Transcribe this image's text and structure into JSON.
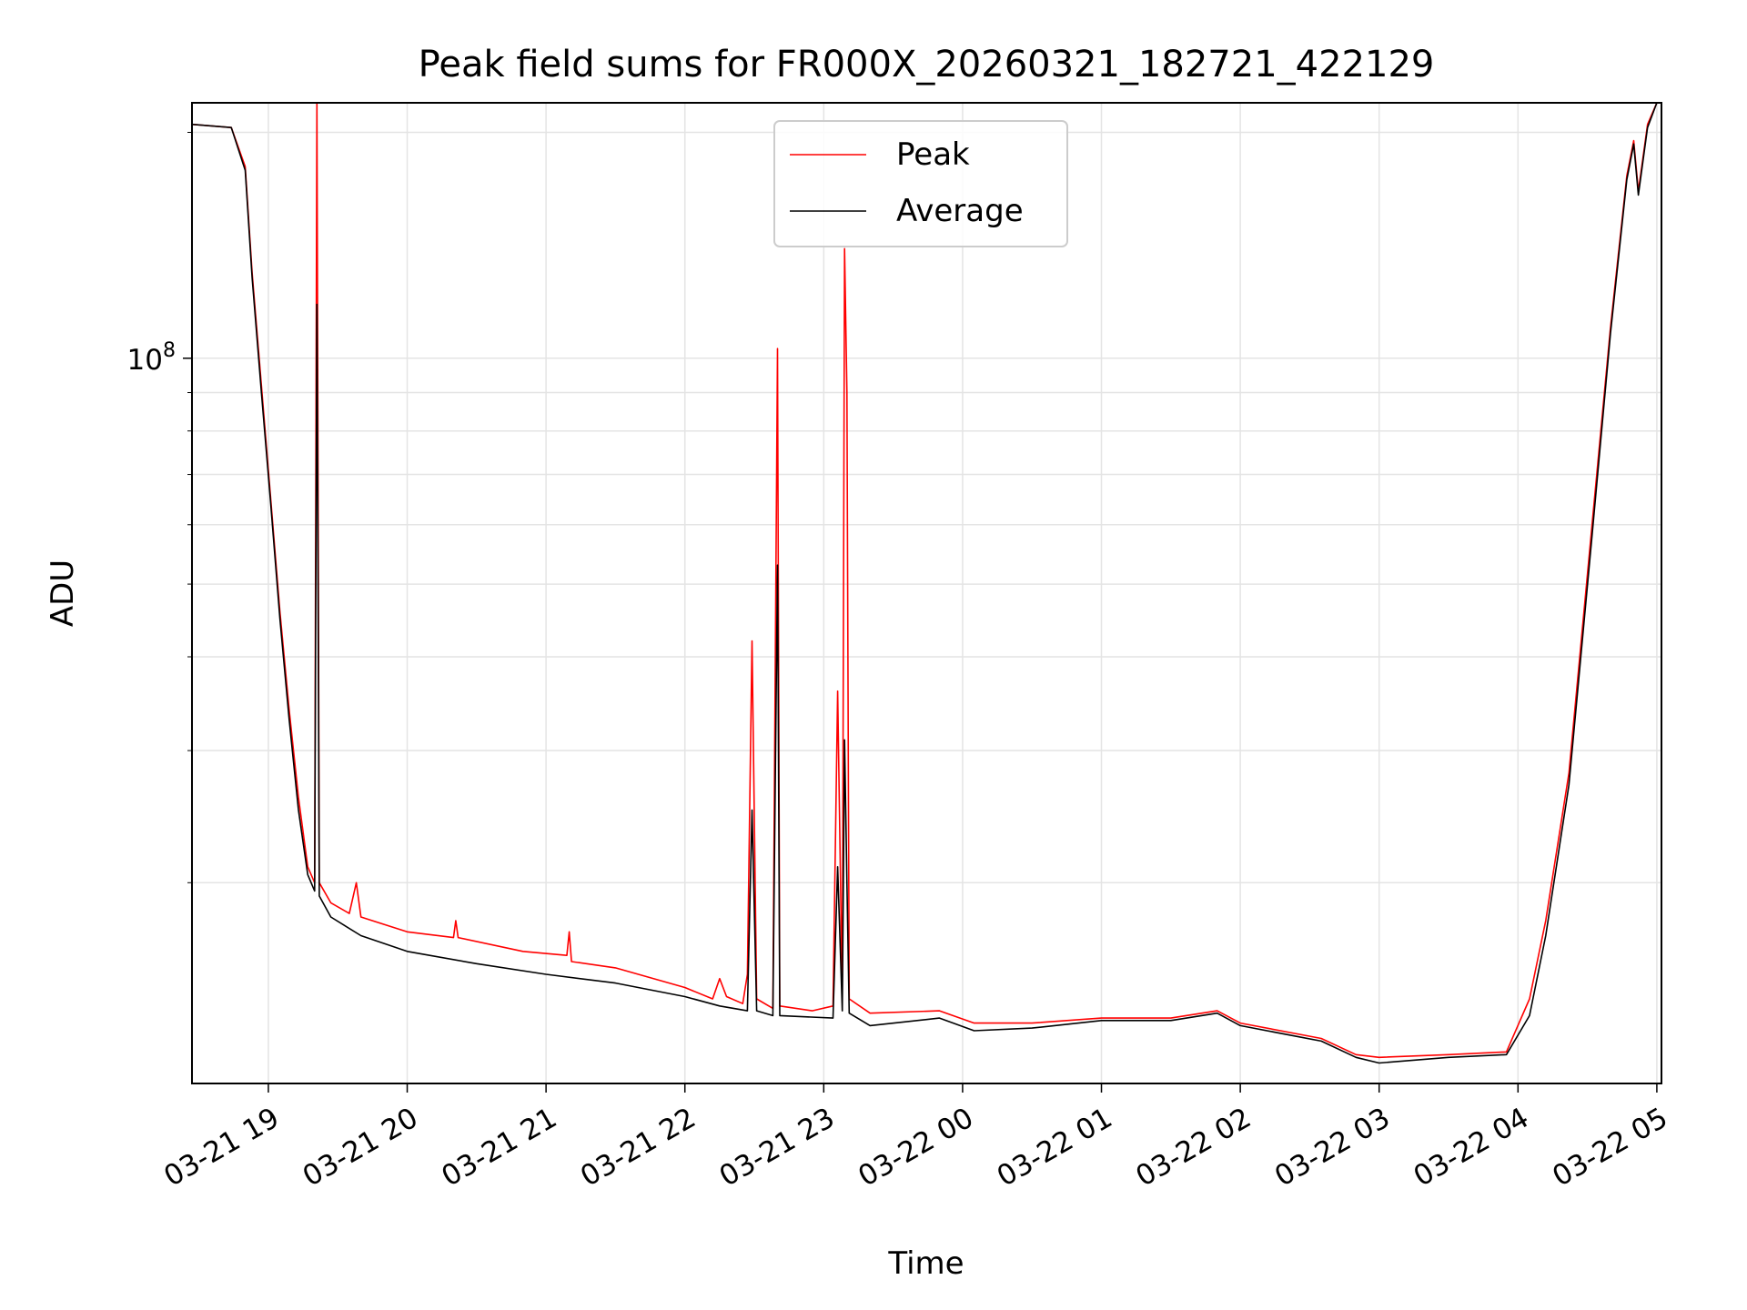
{
  "chart_data": {
    "type": "line",
    "title": "Peak field sums for FR000X_20260321_182721_422129",
    "xlabel": "Time",
    "ylabel": "ADU",
    "y_scale": "log",
    "ylim": [
      10800000,
      219000000
    ],
    "xlim": [
      "2026-03-21 18:27",
      "2026-03-22 05:02"
    ],
    "grid": true,
    "legend_position": "upper center",
    "x_ticks": [
      {
        "value": "2026-03-21 19:00",
        "label": "03-21 19"
      },
      {
        "value": "2026-03-21 20:00",
        "label": "03-21 20"
      },
      {
        "value": "2026-03-21 21:00",
        "label": "03-21 21"
      },
      {
        "value": "2026-03-21 22:00",
        "label": "03-21 22"
      },
      {
        "value": "2026-03-21 23:00",
        "label": "03-21 23"
      },
      {
        "value": "2026-03-22 00:00",
        "label": "03-22 00"
      },
      {
        "value": "2026-03-22 01:00",
        "label": "03-22 01"
      },
      {
        "value": "2026-03-22 02:00",
        "label": "03-22 02"
      },
      {
        "value": "2026-03-22 03:00",
        "label": "03-22 03"
      },
      {
        "value": "2026-03-22 04:00",
        "label": "03-22 04"
      },
      {
        "value": "2026-03-22 05:00",
        "label": "03-22 05"
      }
    ],
    "y_ticks": [
      {
        "value": 100000000,
        "label_base": "10",
        "label_exp": "8"
      }
    ],
    "series": [
      {
        "name": "Peak",
        "color": "#ff0000",
        "points": [
          [
            "2026-03-21 18:27",
            205000000
          ],
          [
            "2026-03-21 18:44",
            203000000
          ],
          [
            "2026-03-21 18:50",
            180000000
          ],
          [
            "2026-03-21 18:53",
            130000000
          ],
          [
            "2026-03-21 18:57",
            92000000
          ],
          [
            "2026-03-21 19:01",
            65000000
          ],
          [
            "2026-03-21 19:05",
            46000000
          ],
          [
            "2026-03-21 19:09",
            34000000
          ],
          [
            "2026-03-21 19:13",
            26000000
          ],
          [
            "2026-03-21 19:17",
            21000000
          ],
          [
            "2026-03-21 19:20",
            20000000
          ],
          [
            "2026-03-21 19:21",
            219000000
          ],
          [
            "2026-03-21 19:22",
            20000000
          ],
          [
            "2026-03-21 19:27",
            18800000
          ],
          [
            "2026-03-21 19:35",
            18200000
          ],
          [
            "2026-03-21 19:38",
            20000000
          ],
          [
            "2026-03-21 19:40",
            18000000
          ],
          [
            "2026-03-21 20:00",
            17200000
          ],
          [
            "2026-03-21 20:20",
            16900000
          ],
          [
            "2026-03-21 20:21",
            17800000
          ],
          [
            "2026-03-21 20:22",
            16900000
          ],
          [
            "2026-03-21 20:50",
            16200000
          ],
          [
            "2026-03-21 21:09",
            16000000
          ],
          [
            "2026-03-21 21:10",
            17200000
          ],
          [
            "2026-03-21 21:11",
            15700000
          ],
          [
            "2026-03-21 21:30",
            15400000
          ],
          [
            "2026-03-21 22:00",
            14500000
          ],
          [
            "2026-03-21 22:12",
            14000000
          ],
          [
            "2026-03-21 22:15",
            14900000
          ],
          [
            "2026-03-21 22:18",
            14100000
          ],
          [
            "2026-03-21 22:25",
            13800000
          ],
          [
            "2026-03-21 22:27",
            15100000
          ],
          [
            "2026-03-21 22:29",
            42000000
          ],
          [
            "2026-03-21 22:31",
            14000000
          ],
          [
            "2026-03-21 22:38",
            13600000
          ],
          [
            "2026-03-21 22:40",
            103000000
          ],
          [
            "2026-03-21 22:41",
            13700000
          ],
          [
            "2026-03-21 22:55",
            13500000
          ],
          [
            "2026-03-21 23:04",
            13700000
          ],
          [
            "2026-03-21 23:06",
            36000000
          ],
          [
            "2026-03-21 23:08",
            14000000
          ],
          [
            "2026-03-21 23:09",
            140000000
          ],
          [
            "2026-03-21 23:10",
            90000000
          ],
          [
            "2026-03-21 23:11",
            14000000
          ],
          [
            "2026-03-21 23:20",
            13400000
          ],
          [
            "2026-03-21 23:50",
            13500000
          ],
          [
            "2026-03-22 00:05",
            13000000
          ],
          [
            "2026-03-22 00:30",
            13000000
          ],
          [
            "2026-03-22 01:00",
            13200000
          ],
          [
            "2026-03-22 01:30",
            13200000
          ],
          [
            "2026-03-22 01:50",
            13500000
          ],
          [
            "2026-03-22 02:00",
            13000000
          ],
          [
            "2026-03-22 02:35",
            12400000
          ],
          [
            "2026-03-22 02:50",
            11800000
          ],
          [
            "2026-03-22 03:00",
            11700000
          ],
          [
            "2026-03-22 03:30",
            11800000
          ],
          [
            "2026-03-22 03:55",
            11900000
          ],
          [
            "2026-03-22 04:05",
            14000000
          ],
          [
            "2026-03-22 04:12",
            17800000
          ],
          [
            "2026-03-22 04:22",
            28000000
          ],
          [
            "2026-03-22 04:32",
            60000000
          ],
          [
            "2026-03-22 04:40",
            110000000
          ],
          [
            "2026-03-22 04:47",
            175000000
          ],
          [
            "2026-03-22 04:50",
            195000000
          ],
          [
            "2026-03-22 04:52",
            167000000
          ],
          [
            "2026-03-22 04:56",
            205000000
          ],
          [
            "2026-03-22 05:00",
            219000000
          ]
        ]
      },
      {
        "name": "Average",
        "color": "#000000",
        "points": [
          [
            "2026-03-21 18:27",
            205000000
          ],
          [
            "2026-03-21 18:44",
            203000000
          ],
          [
            "2026-03-21 18:50",
            178000000
          ],
          [
            "2026-03-21 18:53",
            128000000
          ],
          [
            "2026-03-21 18:57",
            90000000
          ],
          [
            "2026-03-21 19:01",
            64000000
          ],
          [
            "2026-03-21 19:05",
            45000000
          ],
          [
            "2026-03-21 19:09",
            33000000
          ],
          [
            "2026-03-21 19:13",
            25000000
          ],
          [
            "2026-03-21 19:17",
            20500000
          ],
          [
            "2026-03-21 19:20",
            19500000
          ],
          [
            "2026-03-21 19:21",
            118000000
          ],
          [
            "2026-03-21 19:22",
            19200000
          ],
          [
            "2026-03-21 19:27",
            18000000
          ],
          [
            "2026-03-21 19:40",
            17000000
          ],
          [
            "2026-03-21 20:00",
            16200000
          ],
          [
            "2026-03-21 20:30",
            15600000
          ],
          [
            "2026-03-21 21:00",
            15100000
          ],
          [
            "2026-03-21 21:30",
            14700000
          ],
          [
            "2026-03-21 22:00",
            14100000
          ],
          [
            "2026-03-21 22:15",
            13700000
          ],
          [
            "2026-03-21 22:27",
            13500000
          ],
          [
            "2026-03-21 22:29",
            25000000
          ],
          [
            "2026-03-21 22:31",
            13500000
          ],
          [
            "2026-03-21 22:38",
            13300000
          ],
          [
            "2026-03-21 22:40",
            53000000
          ],
          [
            "2026-03-21 22:41",
            13300000
          ],
          [
            "2026-03-21 23:04",
            13200000
          ],
          [
            "2026-03-21 23:06",
            21000000
          ],
          [
            "2026-03-21 23:08",
            13500000
          ],
          [
            "2026-03-21 23:09",
            31000000
          ],
          [
            "2026-03-21 23:10",
            20000000
          ],
          [
            "2026-03-21 23:11",
            13400000
          ],
          [
            "2026-03-21 23:20",
            12900000
          ],
          [
            "2026-03-21 23:50",
            13200000
          ],
          [
            "2026-03-22 00:05",
            12700000
          ],
          [
            "2026-03-22 00:30",
            12800000
          ],
          [
            "2026-03-22 01:00",
            13100000
          ],
          [
            "2026-03-22 01:30",
            13100000
          ],
          [
            "2026-03-22 01:50",
            13400000
          ],
          [
            "2026-03-22 02:00",
            12900000
          ],
          [
            "2026-03-22 02:35",
            12300000
          ],
          [
            "2026-03-22 02:50",
            11700000
          ],
          [
            "2026-03-22 03:00",
            11500000
          ],
          [
            "2026-03-22 03:30",
            11700000
          ],
          [
            "2026-03-22 03:55",
            11800000
          ],
          [
            "2026-03-22 04:05",
            13300000
          ],
          [
            "2026-03-22 04:12",
            17000000
          ],
          [
            "2026-03-22 04:22",
            27000000
          ],
          [
            "2026-03-22 04:32",
            58000000
          ],
          [
            "2026-03-22 04:40",
            108000000
          ],
          [
            "2026-03-22 04:47",
            173000000
          ],
          [
            "2026-03-22 04:50",
            193000000
          ],
          [
            "2026-03-22 04:52",
            165000000
          ],
          [
            "2026-03-22 04:56",
            203000000
          ],
          [
            "2026-03-22 05:00",
            219000000
          ]
        ]
      }
    ]
  }
}
